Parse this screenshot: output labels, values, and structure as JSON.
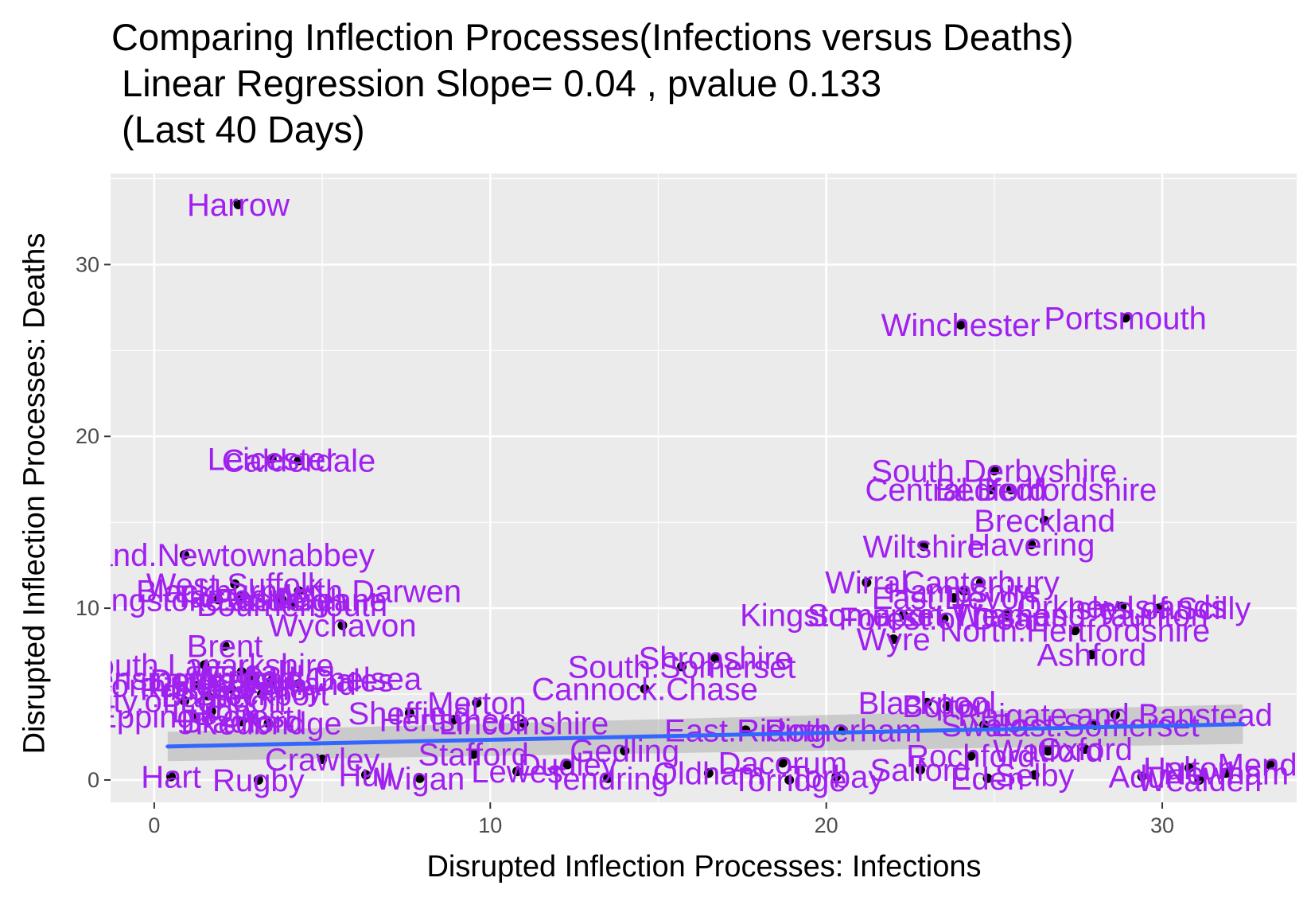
{
  "title": {
    "line1": "Comparing Inflection Processes(Infections versus Deaths)",
    "line2": " Linear Regression Slope= 0.04 , pvalue 0.133",
    "line3": " (Last 40 Days)"
  },
  "colors": {
    "panel": "#ebebeb",
    "grid": "#ffffff",
    "label": "#a020f0",
    "point": "#000000",
    "regression": "#3366ff",
    "ribbon": "#999999"
  },
  "chart_data": {
    "type": "scatter",
    "xlabel": "Disrupted Inflection Processes: Infections",
    "ylabel": "Disrupted Inflection Processes: Deaths",
    "xlim": [
      -1.3,
      34
    ],
    "ylim": [
      -1.3,
      35.3
    ],
    "x_ticks": [
      0,
      10,
      20,
      30
    ],
    "y_ticks": [
      0,
      10,
      20,
      30
    ],
    "grid": true,
    "regression": {
      "slope": 0.04,
      "pvalue": 0.133,
      "x_range": [
        0.4,
        32.4
      ],
      "y_start": 1.95,
      "y_end": 3.25,
      "ci_start": [
        1.1,
        2.8
      ],
      "ci_end": [
        2.1,
        4.4
      ]
    },
    "points": [
      {
        "label": "Harrow",
        "x": 2.5,
        "y": 33.5
      },
      {
        "label": "Winchester",
        "x": 24.0,
        "y": 26.5
      },
      {
        "label": "Portsmouth",
        "x": 28.9,
        "y": 26.9
      },
      {
        "label": "Leicester",
        "x": 3.5,
        "y": 18.7
      },
      {
        "label": "Calderdale",
        "x": 4.3,
        "y": 18.6
      },
      {
        "label": "South.Derbyshire",
        "x": 25.0,
        "y": 18.0
      },
      {
        "label": "Central.Bedfordshire",
        "x": 25.5,
        "y": 16.9
      },
      {
        "label": "Bedford",
        "x": 24.9,
        "y": 16.9
      },
      {
        "label": "Breckland",
        "x": 26.5,
        "y": 15.1
      },
      {
        "label": "Wiltshire",
        "x": 22.9,
        "y": 13.6
      },
      {
        "label": "Havering",
        "x": 26.1,
        "y": 13.7
      },
      {
        "label": "Antrim.and.Newtownabbey",
        "x": 0.9,
        "y": 13.1
      },
      {
        "label": "West.Suffolk",
        "x": 2.4,
        "y": 11.4
      },
      {
        "label": "Blackburn.with.Darwen",
        "x": 4.3,
        "y": 11.0
      },
      {
        "label": "Tameside",
        "x": 2.6,
        "y": 10.7
      },
      {
        "label": "Basingstoke.and.Deane",
        "x": 1.9,
        "y": 10.5
      },
      {
        "label": "Eastleigh",
        "x": 3.8,
        "y": 10.5
      },
      {
        "label": "Bournemouth",
        "x": 4.1,
        "y": 10.2
      },
      {
        "label": "Wychavon",
        "x": 5.6,
        "y": 9.0
      },
      {
        "label": "Wirral",
        "x": 21.2,
        "y": 11.5
      },
      {
        "label": "Canterbury",
        "x": 24.6,
        "y": 11.5
      },
      {
        "label": "Hampshire",
        "x": 24.1,
        "y": 11.0
      },
      {
        "label": "East.Devon",
        "x": 23.8,
        "y": 10.6
      },
      {
        "label": "Kingston.upon.Thames",
        "x": 22.3,
        "y": 9.6
      },
      {
        "label": "Somerset.West.and.Taunton",
        "x": 25.4,
        "y": 9.6
      },
      {
        "label": "Forest.of.Dean",
        "x": 23.5,
        "y": 9.4
      },
      {
        "label": "Orkney.Islands",
        "x": 28.8,
        "y": 10.1
      },
      {
        "label": "Isles.of.Scilly",
        "x": 29.9,
        "y": 10.0
      },
      {
        "label": "Wyre",
        "x": 22.0,
        "y": 8.2
      },
      {
        "label": "North.Hertfordshire",
        "x": 27.4,
        "y": 8.7
      },
      {
        "label": "Ashford",
        "x": 27.9,
        "y": 7.3
      },
      {
        "label": "Brent",
        "x": 2.1,
        "y": 7.8
      },
      {
        "label": "South.Lanarkshire",
        "x": 1.5,
        "y": 6.7
      },
      {
        "label": "Kensington.and.Chelsea",
        "x": 2.8,
        "y": 5.9
      },
      {
        "label": "Walsall",
        "x": 2.6,
        "y": 6.3
      },
      {
        "label": "Enfield",
        "x": 3.0,
        "y": 6.0
      },
      {
        "label": "Derbyshire.Dales",
        "x": 3.5,
        "y": 5.8
      },
      {
        "label": "North.Kesteven",
        "x": 1.3,
        "y": 5.5
      },
      {
        "label": "Ribble.Valley",
        "x": 2.3,
        "y": 5.3
      },
      {
        "label": "Stockport",
        "x": 3.2,
        "y": 5.0
      },
      {
        "label": "Fenland",
        "x": 4.3,
        "y": 5.6
      },
      {
        "label": "Barnet",
        "x": 1.6,
        "y": 4.9
      },
      {
        "label": "City.of.London",
        "x": 0.9,
        "y": 4.6
      },
      {
        "label": "Luton",
        "x": 1.7,
        "y": 4.0
      },
      {
        "label": "Epping.Forest",
        "x": 1.2,
        "y": 3.7
      },
      {
        "label": "Bradford",
        "x": 2.6,
        "y": 3.4
      },
      {
        "label": "Redbridge",
        "x": 3.4,
        "y": 3.3
      },
      {
        "label": "Sheffield",
        "x": 7.6,
        "y": 3.9
      },
      {
        "label": "Merton",
        "x": 9.6,
        "y": 4.5
      },
      {
        "label": "Hertsmere",
        "x": 8.9,
        "y": 3.5
      },
      {
        "label": "Lincolnshire",
        "x": 11.0,
        "y": 3.3
      },
      {
        "label": "Shropshire",
        "x": 16.7,
        "y": 7.1
      },
      {
        "label": "South.Somerset",
        "x": 15.7,
        "y": 6.6
      },
      {
        "label": "Cannock.Chase",
        "x": 14.6,
        "y": 5.3
      },
      {
        "label": "Blackpool",
        "x": 23.0,
        "y": 4.5
      },
      {
        "label": "Bolton",
        "x": 23.6,
        "y": 4.3
      },
      {
        "label": "Reigate.and.Banstead",
        "x": 28.6,
        "y": 3.8
      },
      {
        "label": "East.Somerset",
        "x": 28.0,
        "y": 3.2
      },
      {
        "label": "East.Riding",
        "x": 17.6,
        "y": 2.9
      },
      {
        "label": "Rotherham",
        "x": 20.5,
        "y": 2.9
      },
      {
        "label": "Swale",
        "x": 24.7,
        "y": 3.2
      },
      {
        "label": "Watford",
        "x": 26.6,
        "y": 1.7
      },
      {
        "label": "Oxford",
        "x": 27.7,
        "y": 1.8
      },
      {
        "label": "Rochford",
        "x": 24.3,
        "y": 1.4
      },
      {
        "label": "Gedling",
        "x": 14.0,
        "y": 1.7
      },
      {
        "label": "Stafford",
        "x": 9.5,
        "y": 1.5
      },
      {
        "label": "Crawley",
        "x": 5.0,
        "y": 1.2
      },
      {
        "label": "Dacorum",
        "x": 18.7,
        "y": 1.0
      },
      {
        "label": "Dudley",
        "x": 12.3,
        "y": 0.9
      },
      {
        "label": "Halton",
        "x": 30.8,
        "y": 0.7
      },
      {
        "label": "Mendip",
        "x": 33.2,
        "y": 0.9
      },
      {
        "label": "Newham",
        "x": 31.9,
        "y": 0.4
      },
      {
        "label": "Hull",
        "x": 6.3,
        "y": 0.3
      },
      {
        "label": "Lewes",
        "x": 10.8,
        "y": 0.5
      },
      {
        "label": "Oldham",
        "x": 16.5,
        "y": 0.4
      },
      {
        "label": "Torbay",
        "x": 20.3,
        "y": 0.2
      },
      {
        "label": "Salford",
        "x": 22.8,
        "y": 0.6
      },
      {
        "label": "Selby",
        "x": 26.2,
        "y": 0.3
      },
      {
        "label": "Adur",
        "x": 29.4,
        "y": 0.2
      },
      {
        "label": "Hart",
        "x": 0.5,
        "y": 0.2
      },
      {
        "label": "Rugby",
        "x": 3.1,
        "y": 0.0
      },
      {
        "label": "Wigan",
        "x": 7.9,
        "y": 0.1
      },
      {
        "label": "Tendring",
        "x": 13.5,
        "y": 0.1
      },
      {
        "label": "Torridge",
        "x": 18.9,
        "y": 0.0
      },
      {
        "label": "Eden",
        "x": 24.8,
        "y": 0.1
      },
      {
        "label": "Wealden",
        "x": 31.1,
        "y": 0.0
      }
    ]
  }
}
